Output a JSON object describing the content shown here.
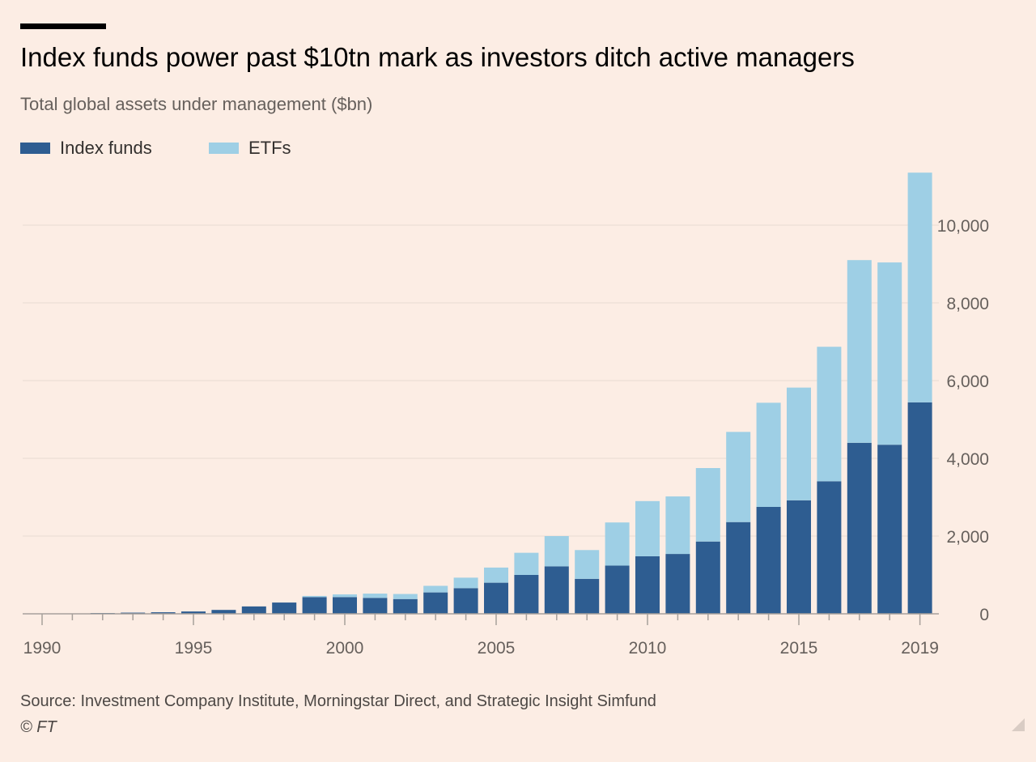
{
  "header": {
    "title": "Index funds power past $10tn mark as investors ditch active managers",
    "subtitle": "Total global assets under management ($bn)"
  },
  "legend": {
    "index_funds_label": "Index funds",
    "etfs_label": "ETFs"
  },
  "footer": {
    "source": "Source: Investment Company Institute, Morningstar Direct, and Strategic Insight Simfund",
    "credit": "© FT"
  },
  "colors": {
    "background": "#fcede4",
    "index_funds": "#2e5d91",
    "etfs": "#9ecfe5",
    "gridline": "#efe1d8",
    "axis_text": "#66605c"
  },
  "chart_data": {
    "type": "bar",
    "stacked": true,
    "title": "Index funds power past $10tn mark as investors ditch active managers",
    "subtitle": "Total global assets under management ($bn)",
    "xlabel": "",
    "ylabel": "",
    "categories": [
      1990,
      1991,
      1992,
      1993,
      1994,
      1995,
      1996,
      1997,
      1998,
      1999,
      2000,
      2001,
      2002,
      2003,
      2004,
      2005,
      2006,
      2007,
      2008,
      2009,
      2010,
      2011,
      2012,
      2013,
      2014,
      2015,
      2016,
      2017,
      2018,
      2019
    ],
    "x_tick_labels": [
      "1990",
      "1995",
      "2000",
      "2005",
      "2010",
      "2015",
      "2019"
    ],
    "series": [
      {
        "name": "Index funds",
        "values": [
          5,
          10,
          20,
          30,
          40,
          60,
          100,
          190,
          290,
          430,
          430,
          410,
          380,
          550,
          660,
          800,
          1000,
          1220,
          900,
          1240,
          1480,
          1540,
          1860,
          2360,
          2750,
          2920,
          3410,
          4400,
          4350,
          5440
        ]
      },
      {
        "name": "ETFs",
        "values": [
          0,
          0,
          0,
          0,
          0,
          0,
          0,
          0,
          0,
          30,
          70,
          110,
          130,
          170,
          270,
          390,
          570,
          780,
          740,
          1110,
          1420,
          1480,
          1890,
          2320,
          2680,
          2900,
          3460,
          4700,
          4690,
          5910
        ]
      }
    ],
    "y_ticks": [
      0,
      2000,
      4000,
      6000,
      8000,
      10000
    ],
    "y_tick_labels": [
      "0",
      "2,000",
      "4,000",
      "6,000",
      "8,000",
      "10,000"
    ],
    "ylim": [
      0,
      11500
    ],
    "y_axis_position": "right",
    "grid": true,
    "legend_position": "top-left"
  }
}
